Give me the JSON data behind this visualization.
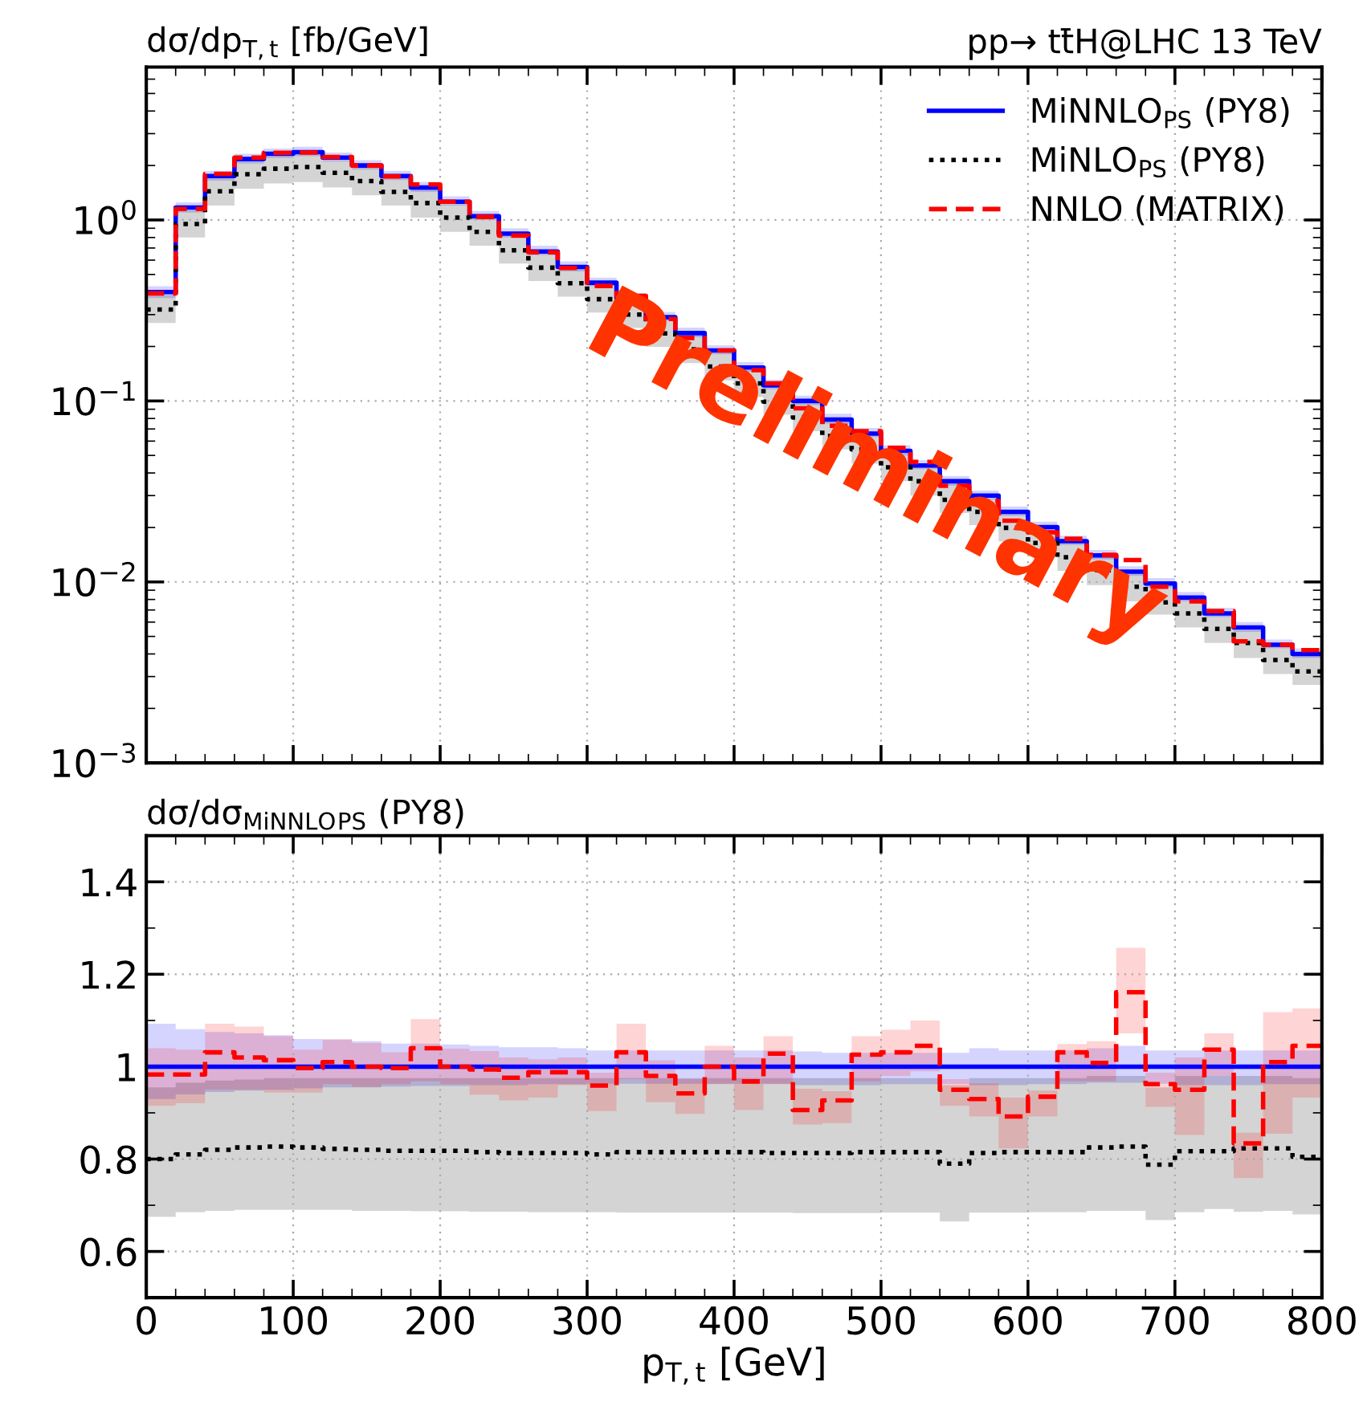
{
  "chart_data": [
    {
      "type": "step",
      "title": "pp→ tt̄H@LHC 13 TeV",
      "ylabel": "dσ/dp$_{T,t}$ [fb/GeV]",
      "annotations": [
        "Preliminary"
      ],
      "log": "y",
      "grid": true,
      "legend": "top right",
      "tick_labels": "y",
      "x": [
        0,
        20,
        40,
        60,
        80,
        100,
        120,
        140,
        160,
        180,
        200,
        220,
        240,
        260,
        280,
        300,
        320,
        340,
        360,
        380,
        400,
        420,
        440,
        460,
        480,
        500,
        520,
        540,
        560,
        580,
        600,
        620,
        640,
        660,
        680,
        700,
        720,
        740,
        760,
        780,
        800
      ],
      "xlim": [
        0,
        800
      ],
      "xticks": [
        0,
        100,
        200,
        300,
        400,
        500,
        600,
        700,
        800
      ],
      "ylim": [
        0.001,
        7
      ],
      "yticks": [
        {
          "value": 0.001,
          "label": "10$^{−3}$"
        },
        {
          "value": 0.01,
          "label": "10$^{−2}$"
        },
        {
          "value": 0.1,
          "label": "10$^{−1}$"
        },
        {
          "value": 1,
          "label": "10$^{0}$"
        }
      ],
      "series": [
        {
          "name": "MiNNLO$_{PS}$ (PY8)",
          "color": "#0000ff",
          "line_style": "solid",
          "values": [
            0.4,
            1.17,
            1.75,
            2.17,
            2.32,
            2.37,
            2.21,
            2.0,
            1.75,
            1.51,
            1.26,
            1.05,
            0.84,
            0.67,
            0.55,
            0.45,
            0.37,
            0.29,
            0.237,
            0.19,
            0.153,
            0.122,
            0.1,
            0.079,
            0.066,
            0.053,
            0.044,
            0.036,
            0.03,
            0.0244,
            0.0201,
            0.0168,
            0.014,
            0.0114,
            0.0098,
            0.0082,
            0.0067,
            0.0056,
            0.0045,
            0.004,
            0.004
          ],
          "upper": [
            0.43,
            1.25,
            1.87,
            2.32,
            2.48,
            2.54,
            2.36,
            2.14,
            1.87,
            1.62,
            1.35,
            1.12,
            0.9,
            0.72,
            0.59,
            0.48,
            0.396,
            0.31,
            0.254,
            0.203,
            0.164,
            0.131,
            0.107,
            0.085,
            0.071,
            0.057,
            0.047,
            0.0385,
            0.032,
            0.0261,
            0.0215,
            0.018,
            0.015,
            0.0122,
            0.0105,
            0.0088,
            0.0072,
            0.006,
            0.0048,
            0.0043,
            0.0043
          ],
          "lower": [
            0.37,
            1.1,
            1.65,
            2.05,
            2.2,
            2.25,
            2.1,
            1.9,
            1.66,
            1.43,
            1.2,
            1.0,
            0.8,
            0.64,
            0.52,
            0.43,
            0.352,
            0.276,
            0.225,
            0.181,
            0.145,
            0.116,
            0.095,
            0.075,
            0.063,
            0.05,
            0.042,
            0.034,
            0.0285,
            0.0232,
            0.0191,
            0.016,
            0.0133,
            0.0108,
            0.0093,
            0.0078,
            0.0064,
            0.0053,
            0.0043,
            0.0038,
            0.0038
          ]
        },
        {
          "name": "MiNLO$_{PS}$ (PY8)",
          "color": "#000000",
          "line_style": "dotted",
          "values": [
            0.32,
            0.95,
            1.44,
            1.79,
            1.92,
            1.96,
            1.82,
            1.64,
            1.43,
            1.24,
            1.03,
            0.86,
            0.68,
            0.545,
            0.447,
            0.365,
            0.3,
            0.236,
            0.193,
            0.155,
            0.125,
            0.099,
            0.081,
            0.064,
            0.054,
            0.043,
            0.036,
            0.0284,
            0.0244,
            0.0199,
            0.0164,
            0.0137,
            0.0116,
            0.0094,
            0.0077,
            0.0067,
            0.0055,
            0.0046,
            0.0037,
            0.0032,
            0.0032
          ],
          "upper": [
            0.385,
            1.13,
            1.7,
            2.1,
            2.25,
            2.3,
            2.14,
            1.94,
            1.7,
            1.46,
            1.22,
            1.02,
            0.815,
            0.65,
            0.534,
            0.437,
            0.359,
            0.281,
            0.23,
            0.184,
            0.148,
            0.118,
            0.097,
            0.077,
            0.064,
            0.051,
            0.043,
            0.035,
            0.029,
            0.0237,
            0.0195,
            0.0163,
            0.0136,
            0.0111,
            0.0095,
            0.008,
            0.0065,
            0.0054,
            0.0044,
            0.0039,
            0.0039
          ],
          "lower": [
            0.27,
            0.8,
            1.2,
            1.49,
            1.59,
            1.62,
            1.51,
            1.37,
            1.2,
            1.03,
            0.86,
            0.72,
            0.575,
            0.46,
            0.377,
            0.308,
            0.253,
            0.199,
            0.162,
            0.13,
            0.105,
            0.084,
            0.068,
            0.054,
            0.045,
            0.036,
            0.03,
            0.024,
            0.0206,
            0.0167,
            0.0138,
            0.0115,
            0.0096,
            0.0078,
            0.0066,
            0.0056,
            0.0046,
            0.0038,
            0.0031,
            0.0027,
            0.0027
          ]
        },
        {
          "name": "NNLO (MATRIX)",
          "color": "#ff0000",
          "line_style": "dashed",
          "values": [
            0.393,
            1.15,
            1.8,
            2.21,
            2.35,
            2.36,
            2.23,
            2.0,
            1.74,
            1.57,
            1.26,
            1.04,
            0.82,
            0.662,
            0.543,
            0.432,
            0.381,
            0.284,
            0.223,
            0.19,
            0.148,
            0.125,
            0.091,
            0.073,
            0.068,
            0.055,
            0.046,
            0.034,
            0.028,
            0.0218,
            0.0188,
            0.0173,
            0.0141,
            0.0132,
            0.0094,
            0.0078,
            0.0069,
            0.0047,
            0.0045,
            0.0042,
            0.0042
          ]
        }
      ]
    },
    {
      "type": "step",
      "ylabel": "dσ/dσ$_{MiNNLO}$$_{PS}$ (PY8)",
      "xlabel": "p$_{T,t}$ [GeV]",
      "grid": true,
      "x": [
        0,
        20,
        40,
        60,
        80,
        100,
        120,
        140,
        160,
        180,
        200,
        220,
        240,
        260,
        280,
        300,
        320,
        340,
        360,
        380,
        400,
        420,
        440,
        460,
        480,
        500,
        520,
        540,
        560,
        580,
        600,
        620,
        640,
        660,
        680,
        700,
        720,
        740,
        760,
        780,
        800
      ],
      "xlim": [
        0,
        800
      ],
      "xticks": [
        0,
        100,
        200,
        300,
        400,
        500,
        600,
        700,
        800
      ],
      "ylim": [
        0.5,
        1.5
      ],
      "yticks": [
        0.6,
        0.8,
        {
          "value": 1,
          "label": "1"
        },
        1.2,
        1.4
      ],
      "series": [
        {
          "color": "#0000ff",
          "line_style": "solid",
          "values": [
            1,
            1,
            1,
            1,
            1,
            1,
            1,
            1,
            1,
            1,
            1,
            1,
            1,
            1,
            1,
            1,
            1,
            1,
            1,
            1,
            1,
            1,
            1,
            1,
            1,
            1,
            1,
            1,
            1,
            1,
            1,
            1,
            1,
            1,
            1,
            1,
            1,
            1,
            1,
            1,
            1
          ],
          "upper": [
            1.093,
            1.081,
            1.075,
            1.072,
            1.068,
            1.06,
            1.058,
            1.055,
            1.05,
            1.05,
            1.048,
            1.045,
            1.042,
            1.042,
            1.04,
            1.035,
            1.035,
            1.035,
            1.035,
            1.035,
            1.035,
            1.035,
            1.033,
            1.03,
            1.03,
            1.03,
            1.03,
            1.03,
            1.04,
            1.035,
            1.035,
            1.035,
            1.04,
            1.045,
            1.035,
            1.035,
            1.035,
            1.035,
            1.035,
            1.035,
            1.035
          ],
          "lower": [
            0.93,
            0.94,
            0.945,
            0.948,
            0.95,
            0.953,
            0.955,
            0.955,
            0.957,
            0.958,
            0.958,
            0.96,
            0.96,
            0.962,
            0.962,
            0.963,
            0.963,
            0.963,
            0.963,
            0.963,
            0.963,
            0.963,
            0.96,
            0.96,
            0.96,
            0.962,
            0.962,
            0.962,
            0.96,
            0.96,
            0.962,
            0.962,
            0.965,
            0.965,
            0.963,
            0.96,
            0.96,
            0.96,
            0.962,
            0.962,
            0.962
          ]
        },
        {
          "color": "#000000",
          "line_style": "dotted",
          "values": [
            0.8,
            0.81,
            0.82,
            0.825,
            0.827,
            0.825,
            0.822,
            0.82,
            0.818,
            0.818,
            0.818,
            0.815,
            0.813,
            0.813,
            0.813,
            0.81,
            0.815,
            0.815,
            0.815,
            0.815,
            0.815,
            0.813,
            0.813,
            0.813,
            0.815,
            0.815,
            0.815,
            0.79,
            0.813,
            0.815,
            0.815,
            0.815,
            0.825,
            0.827,
            0.788,
            0.817,
            0.817,
            0.823,
            0.823,
            0.805,
            0.805
          ],
          "upper": [
            0.955,
            0.965,
            0.97,
            0.972,
            0.975,
            0.975,
            0.975,
            0.975,
            0.975,
            0.975,
            0.975,
            0.975,
            0.975,
            0.975,
            0.975,
            0.975,
            0.975,
            0.975,
            0.975,
            0.975,
            0.975,
            0.975,
            0.975,
            0.975,
            0.975,
            0.975,
            0.975,
            0.96,
            0.975,
            0.975,
            0.975,
            0.975,
            0.98,
            0.98,
            0.955,
            0.98,
            0.98,
            0.98,
            0.98,
            0.975,
            0.975
          ],
          "lower": [
            0.675,
            0.685,
            0.688,
            0.69,
            0.69,
            0.69,
            0.69,
            0.688,
            0.688,
            0.687,
            0.687,
            0.686,
            0.686,
            0.685,
            0.685,
            0.685,
            0.684,
            0.684,
            0.684,
            0.684,
            0.684,
            0.684,
            0.683,
            0.683,
            0.683,
            0.684,
            0.684,
            0.665,
            0.684,
            0.684,
            0.685,
            0.685,
            0.688,
            0.688,
            0.668,
            0.685,
            0.692,
            0.686,
            0.688,
            0.68,
            0.68
          ]
        },
        {
          "color": "#ff0000",
          "line_style": "dashed",
          "values": [
            0.983,
            0.983,
            1.031,
            1.02,
            1.014,
            0.997,
            1.01,
            1.0,
            0.997,
            1.04,
            1.0,
            0.994,
            0.976,
            0.988,
            0.988,
            0.959,
            1.031,
            0.98,
            0.942,
            1.0,
            0.968,
            1.028,
            0.906,
            0.927,
            1.026,
            1.031,
            1.045,
            0.95,
            0.93,
            0.892,
            0.935,
            1.031,
            1.008,
            1.161,
            0.962,
            0.95,
            1.037,
            0.834,
            1.01,
            1.045,
            1.045
          ],
          "upper": [
            1.04,
            1.037,
            1.093,
            1.087,
            1.066,
            1.037,
            1.06,
            1.051,
            1.031,
            1.103,
            1.039,
            1.034,
            1.02,
            1.016,
            1.02,
            0.987,
            1.093,
            1.014,
            0.973,
            1.045,
            1.02,
            1.066,
            0.952,
            0.947,
            1.066,
            1.08,
            1.1,
            0.973,
            0.964,
            0.933,
            0.948,
            1.049,
            1.055,
            1.257,
            0.987,
            1.02,
            1.072,
            0.857,
            1.118,
            1.126,
            1.126
          ],
          "lower": [
            0.915,
            0.921,
            0.95,
            0.95,
            0.944,
            0.944,
            0.962,
            0.956,
            0.962,
            0.968,
            0.962,
            0.939,
            0.927,
            0.933,
            0.96,
            0.904,
            0.973,
            0.923,
            0.898,
            0.962,
            0.906,
            0.962,
            0.875,
            0.878,
            0.968,
            0.98,
            0.99,
            0.915,
            0.892,
            0.823,
            0.892,
            0.968,
            0.968,
            1.072,
            0.913,
            0.852,
            0.98,
            0.759,
            0.855,
            0.933,
            0.933
          ]
        }
      ]
    }
  ]
}
